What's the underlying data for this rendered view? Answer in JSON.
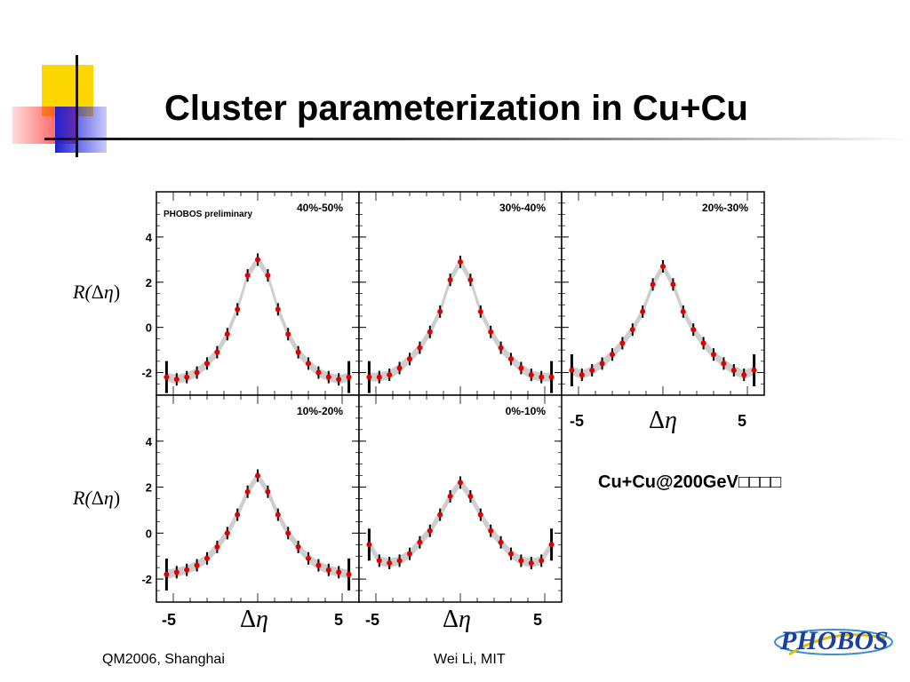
{
  "title": "Cluster parameterization in Cu+Cu",
  "footer": {
    "left": "QM2006, Shanghai",
    "center": "Wei Li, MIT"
  },
  "annotation": "Cu+Cu@200GeV□□□□",
  "logo_text": "PHOBOS",
  "axis": {
    "ylabel_R": "R(",
    "ylabel_delta": "Δ",
    "ylabel_eta": "η",
    "ylabel_close": ")",
    "xlabel_delta": "Δ",
    "xlabel_eta": "η",
    "xtick_left": "-5",
    "xtick_right": "5"
  },
  "colors": {
    "fit": "#c9c9c9",
    "points": "#e00000",
    "errbar": "#000000"
  },
  "chart_data": [
    {
      "type": "scatter",
      "label": "40%-50%",
      "tag": "PHOBOS preliminary",
      "ylim": [
        -3,
        6
      ],
      "xlim": [
        -6,
        6
      ],
      "yticks": [
        -2,
        0,
        2,
        4
      ],
      "x": [
        -5.4,
        -4.8,
        -4.2,
        -3.6,
        -3.0,
        -2.4,
        -1.8,
        -1.2,
        -0.6,
        0,
        0.6,
        1.2,
        1.8,
        2.4,
        3.0,
        3.6,
        4.2,
        4.8,
        5.4
      ],
      "y": [
        -2.2,
        -2.3,
        -2.2,
        -2.0,
        -1.6,
        -1.1,
        -0.3,
        0.8,
        2.3,
        3.0,
        2.3,
        0.8,
        -0.3,
        -1.1,
        -1.6,
        -2.0,
        -2.2,
        -2.3,
        -2.2
      ]
    },
    {
      "type": "scatter",
      "label": "30%-40%",
      "ylim": [
        -3,
        6
      ],
      "xlim": [
        -6,
        6
      ],
      "yticks": [
        -2,
        0,
        2,
        4
      ],
      "x": [
        -5.4,
        -4.8,
        -4.2,
        -3.6,
        -3.0,
        -2.4,
        -1.8,
        -1.2,
        -0.6,
        0,
        0.6,
        1.2,
        1.8,
        2.4,
        3.0,
        3.6,
        4.2,
        4.8,
        5.4
      ],
      "y": [
        -2.2,
        -2.2,
        -2.1,
        -1.8,
        -1.4,
        -0.9,
        -0.2,
        0.7,
        2.1,
        2.9,
        2.1,
        0.7,
        -0.2,
        -0.9,
        -1.4,
        -1.8,
        -2.1,
        -2.2,
        -2.2
      ]
    },
    {
      "type": "scatter",
      "label": "20%-30%",
      "ylim": [
        -3,
        6
      ],
      "xlim": [
        -6,
        6
      ],
      "yticks": [
        -2,
        0,
        2,
        4
      ],
      "x": [
        -5.4,
        -4.8,
        -4.2,
        -3.6,
        -3.0,
        -2.4,
        -1.8,
        -1.2,
        -0.6,
        0,
        0.6,
        1.2,
        1.8,
        2.4,
        3.0,
        3.6,
        4.2,
        4.8,
        5.4
      ],
      "y": [
        -1.9,
        -2.1,
        -1.9,
        -1.6,
        -1.2,
        -0.7,
        -0.1,
        0.7,
        1.9,
        2.7,
        1.9,
        0.7,
        -0.1,
        -0.7,
        -1.2,
        -1.6,
        -1.9,
        -2.1,
        -1.9
      ]
    },
    {
      "type": "scatter",
      "label": "10%-20%",
      "ylim": [
        -3,
        6
      ],
      "xlim": [
        -6,
        6
      ],
      "yticks": [
        -2,
        0,
        2,
        4
      ],
      "x": [
        -5.4,
        -4.8,
        -4.2,
        -3.6,
        -3.0,
        -2.4,
        -1.8,
        -1.2,
        -0.6,
        0,
        0.6,
        1.2,
        1.8,
        2.4,
        3.0,
        3.6,
        4.2,
        4.8,
        5.4
      ],
      "y": [
        -1.8,
        -1.7,
        -1.6,
        -1.4,
        -1.1,
        -0.6,
        0.0,
        0.8,
        1.8,
        2.5,
        1.8,
        0.8,
        0.0,
        -0.6,
        -1.1,
        -1.4,
        -1.6,
        -1.7,
        -1.8
      ]
    },
    {
      "type": "scatter",
      "label": "0%-10%",
      "ylim": [
        -3,
        6
      ],
      "xlim": [
        -6,
        6
      ],
      "yticks": [
        -2,
        0,
        2,
        4
      ],
      "x": [
        -5.4,
        -4.8,
        -4.2,
        -3.6,
        -3.0,
        -2.4,
        -1.8,
        -1.2,
        -0.6,
        0,
        0.6,
        1.2,
        1.8,
        2.4,
        3.0,
        3.6,
        4.2,
        4.8,
        5.4
      ],
      "y": [
        -0.5,
        -1.2,
        -1.3,
        -1.2,
        -0.9,
        -0.4,
        0.1,
        0.8,
        1.6,
        2.2,
        1.6,
        0.8,
        0.1,
        -0.4,
        -0.9,
        -1.2,
        -1.3,
        -1.2,
        -0.5
      ]
    }
  ]
}
